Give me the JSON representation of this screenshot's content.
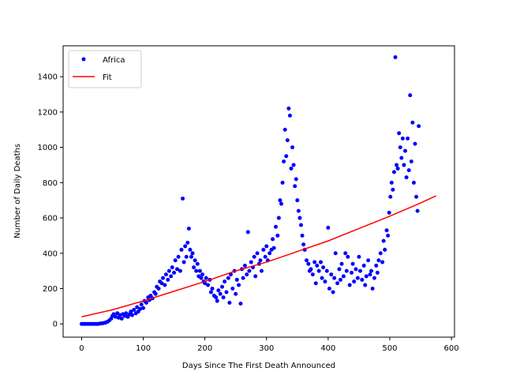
{
  "chart_data": {
    "type": "scatter",
    "xlabel": "Days Since The First Death Announced",
    "ylabel": "Number of Daily Deaths",
    "xlim": [
      -30,
      605
    ],
    "ylim": [
      -75,
      1575
    ],
    "xticks": [
      0,
      100,
      200,
      300,
      400,
      500,
      600
    ],
    "yticks": [
      0,
      200,
      400,
      600,
      800,
      1000,
      1200,
      1400
    ],
    "grid": false,
    "legend_position": "top-left",
    "series": [
      {
        "name": "Africa",
        "kind": "scatter",
        "color": "#0000ff",
        "points": [
          [
            0,
            0
          ],
          [
            3,
            0
          ],
          [
            6,
            0
          ],
          [
            9,
            0
          ],
          [
            12,
            0
          ],
          [
            15,
            0
          ],
          [
            18,
            0
          ],
          [
            21,
            0
          ],
          [
            24,
            0
          ],
          [
            27,
            0
          ],
          [
            30,
            2
          ],
          [
            33,
            3
          ],
          [
            36,
            5
          ],
          [
            39,
            8
          ],
          [
            42,
            12
          ],
          [
            45,
            20
          ],
          [
            48,
            30
          ],
          [
            50,
            45
          ],
          [
            52,
            55
          ],
          [
            55,
            40
          ],
          [
            58,
            60
          ],
          [
            60,
            35
          ],
          [
            62,
            50
          ],
          [
            65,
            30
          ],
          [
            67,
            55
          ],
          [
            70,
            45
          ],
          [
            72,
            60
          ],
          [
            75,
            40
          ],
          [
            78,
            55
          ],
          [
            80,
            70
          ],
          [
            82,
            50
          ],
          [
            85,
            80
          ],
          [
            88,
            60
          ],
          [
            90,
            95
          ],
          [
            92,
            70
          ],
          [
            95,
            85
          ],
          [
            97,
            110
          ],
          [
            100,
            90
          ],
          [
            102,
            130
          ],
          [
            105,
            120
          ],
          [
            108,
            150
          ],
          [
            110,
            135
          ],
          [
            112,
            160
          ],
          [
            115,
            145
          ],
          [
            118,
            180
          ],
          [
            120,
            170
          ],
          [
            122,
            210
          ],
          [
            125,
            200
          ],
          [
            127,
            240
          ],
          [
            130,
            230
          ],
          [
            132,
            260
          ],
          [
            135,
            220
          ],
          [
            137,
            280
          ],
          [
            140,
            250
          ],
          [
            142,
            300
          ],
          [
            145,
            270
          ],
          [
            147,
            320
          ],
          [
            150,
            290
          ],
          [
            152,
            360
          ],
          [
            155,
            310
          ],
          [
            157,
            380
          ],
          [
            160,
            300
          ],
          [
            162,
            420
          ],
          [
            164,
            710
          ],
          [
            166,
            350
          ],
          [
            168,
            440
          ],
          [
            170,
            380
          ],
          [
            172,
            460
          ],
          [
            174,
            540
          ],
          [
            176,
            420
          ],
          [
            178,
            380
          ],
          [
            180,
            400
          ],
          [
            182,
            320
          ],
          [
            184,
            360
          ],
          [
            186,
            300
          ],
          [
            188,
            340
          ],
          [
            190,
            270
          ],
          [
            192,
            300
          ],
          [
            194,
            260
          ],
          [
            196,
            280
          ],
          [
            198,
            240
          ],
          [
            200,
            230
          ],
          [
            202,
            260
          ],
          [
            205,
            220
          ],
          [
            208,
            250
          ],
          [
            210,
            180
          ],
          [
            212,
            200
          ],
          [
            215,
            160
          ],
          [
            218,
            150
          ],
          [
            220,
            130
          ],
          [
            222,
            190
          ],
          [
            225,
            170
          ],
          [
            228,
            210
          ],
          [
            230,
            150
          ],
          [
            232,
            240
          ],
          [
            235,
            180
          ],
          [
            238,
            260
          ],
          [
            240,
            120
          ],
          [
            242,
            280
          ],
          [
            245,
            200
          ],
          [
            248,
            300
          ],
          [
            250,
            170
          ],
          [
            252,
            250
          ],
          [
            255,
            220
          ],
          [
            258,
            115
          ],
          [
            260,
            310
          ],
          [
            262,
            260
          ],
          [
            265,
            330
          ],
          [
            268,
            280
          ],
          [
            270,
            520
          ],
          [
            272,
            300
          ],
          [
            275,
            350
          ],
          [
            278,
            320
          ],
          [
            280,
            380
          ],
          [
            282,
            270
          ],
          [
            285,
            400
          ],
          [
            288,
            340
          ],
          [
            290,
            360
          ],
          [
            292,
            300
          ],
          [
            295,
            420
          ],
          [
            298,
            380
          ],
          [
            300,
            440
          ],
          [
            302,
            360
          ],
          [
            305,
            400
          ],
          [
            308,
            420
          ],
          [
            310,
            480
          ],
          [
            312,
            430
          ],
          [
            315,
            550
          ],
          [
            318,
            500
          ],
          [
            320,
            600
          ],
          [
            322,
            700
          ],
          [
            324,
            680
          ],
          [
            326,
            800
          ],
          [
            328,
            920
          ],
          [
            330,
            1100
          ],
          [
            332,
            950
          ],
          [
            334,
            1040
          ],
          [
            336,
            1220
          ],
          [
            338,
            1180
          ],
          [
            340,
            880
          ],
          [
            342,
            1000
          ],
          [
            344,
            900
          ],
          [
            346,
            780
          ],
          [
            348,
            820
          ],
          [
            350,
            700
          ],
          [
            352,
            640
          ],
          [
            354,
            600
          ],
          [
            356,
            560
          ],
          [
            358,
            500
          ],
          [
            360,
            450
          ],
          [
            362,
            420
          ],
          [
            365,
            360
          ],
          [
            368,
            340
          ],
          [
            370,
            300
          ],
          [
            372,
            310
          ],
          [
            375,
            280
          ],
          [
            378,
            350
          ],
          [
            380,
            230
          ],
          [
            382,
            330
          ],
          [
            385,
            300
          ],
          [
            388,
            350
          ],
          [
            390,
            260
          ],
          [
            392,
            320
          ],
          [
            395,
            240
          ],
          [
            398,
            300
          ],
          [
            400,
            545
          ],
          [
            402,
            200
          ],
          [
            405,
            280
          ],
          [
            408,
            180
          ],
          [
            410,
            260
          ],
          [
            412,
            400
          ],
          [
            415,
            230
          ],
          [
            418,
            310
          ],
          [
            420,
            250
          ],
          [
            422,
            340
          ],
          [
            425,
            270
          ],
          [
            428,
            400
          ],
          [
            430,
            300
          ],
          [
            432,
            380
          ],
          [
            435,
            220
          ],
          [
            438,
            290
          ],
          [
            440,
            340
          ],
          [
            442,
            240
          ],
          [
            445,
            310
          ],
          [
            448,
            260
          ],
          [
            450,
            380
          ],
          [
            452,
            300
          ],
          [
            455,
            250
          ],
          [
            458,
            330
          ],
          [
            460,
            220
          ],
          [
            462,
            270
          ],
          [
            465,
            360
          ],
          [
            468,
            280
          ],
          [
            470,
            300
          ],
          [
            472,
            200
          ],
          [
            475,
            260
          ],
          [
            478,
            330
          ],
          [
            480,
            290
          ],
          [
            482,
            360
          ],
          [
            485,
            400
          ],
          [
            488,
            350
          ],
          [
            490,
            470
          ],
          [
            492,
            420
          ],
          [
            495,
            530
          ],
          [
            497,
            500
          ],
          [
            499,
            630
          ],
          [
            501,
            720
          ],
          [
            503,
            800
          ],
          [
            505,
            760
          ],
          [
            507,
            860
          ],
          [
            509,
            1510
          ],
          [
            511,
            900
          ],
          [
            513,
            880
          ],
          [
            515,
            1080
          ],
          [
            517,
            1000
          ],
          [
            519,
            940
          ],
          [
            521,
            1050
          ],
          [
            523,
            900
          ],
          [
            525,
            980
          ],
          [
            527,
            830
          ],
          [
            529,
            1050
          ],
          [
            531,
            870
          ],
          [
            533,
            1295
          ],
          [
            535,
            920
          ],
          [
            537,
            1140
          ],
          [
            539,
            800
          ],
          [
            541,
            1020
          ],
          [
            543,
            720
          ],
          [
            545,
            640
          ],
          [
            547,
            1120
          ]
        ]
      },
      {
        "name": "Fit",
        "kind": "line",
        "color": "#ff0000",
        "x": [
          0,
          50,
          100,
          150,
          200,
          250,
          300,
          350,
          400,
          450,
          500,
          550,
          575
        ],
        "y": [
          40,
          80,
          130,
          185,
          240,
          300,
          350,
          410,
          470,
          540,
          610,
          685,
          725
        ]
      }
    ]
  }
}
